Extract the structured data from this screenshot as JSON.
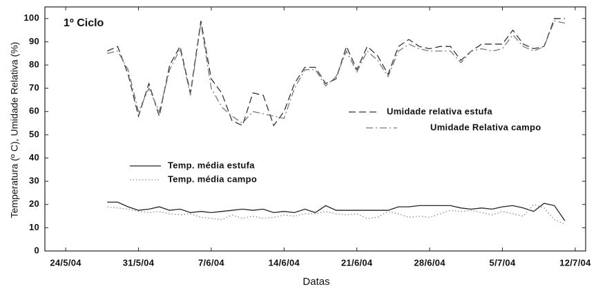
{
  "chart_data": {
    "type": "line",
    "annotation": "1º Ciclo",
    "xlabel": "Datas",
    "ylabel": "Temperatura (º C), Umidade Relativa (%)",
    "x": [
      "28/5/04",
      "29/5/04",
      "30/5/04",
      "31/5/04",
      "1/6/04",
      "2/6/04",
      "3/6/04",
      "4/6/04",
      "5/6/04",
      "6/6/04",
      "7/6/04",
      "8/6/04",
      "9/6/04",
      "10/6/04",
      "11/6/04",
      "12/6/04",
      "13/6/04",
      "14/6/04",
      "15/6/04",
      "16/6/04",
      "17/6/04",
      "18/6/04",
      "19/6/04",
      "20/6/04",
      "21/6/04",
      "22/6/04",
      "23/6/04",
      "24/6/04",
      "25/6/04",
      "26/6/04",
      "27/6/04",
      "28/6/04",
      "29/6/04",
      "30/6/04",
      "1/7/04",
      "2/7/04",
      "3/7/04",
      "4/7/04",
      "5/7/04",
      "6/7/04",
      "7/7/04",
      "8/7/04",
      "9/7/04",
      "10/7/04",
      "11/7/04"
    ],
    "xlim": [
      "22/5/04",
      "13/7/04"
    ],
    "xticks": [
      "24/5/04",
      "31/5/04",
      "7/6/04",
      "14/6/04",
      "21/6/04",
      "28/6/04",
      "5/7/04",
      "12/7/04"
    ],
    "ylim": [
      0,
      105
    ],
    "yticks": [
      0,
      10,
      20,
      30,
      40,
      50,
      60,
      70,
      80,
      90,
      100
    ],
    "series": [
      {
        "name": "Umidade relativa estufa",
        "color": "#333333",
        "dash": "dashed",
        "values": [
          86,
          88,
          76,
          58,
          72,
          58,
          80,
          88,
          68,
          99,
          74,
          68,
          56,
          54,
          68,
          67,
          54,
          60,
          72,
          79,
          79,
          72,
          74,
          88,
          78,
          88,
          84,
          76,
          88,
          91,
          88,
          87,
          88,
          88,
          82,
          86,
          89,
          89,
          89,
          95,
          89,
          87,
          88,
          100,
          100
        ]
      },
      {
        "name": "Umidade Relativa campo",
        "color": "#777777",
        "dash": "dashdot",
        "values": [
          85,
          86,
          78,
          60,
          70,
          60,
          78,
          87,
          67,
          98,
          70,
          62,
          58,
          55,
          60,
          59,
          58,
          57,
          70,
          78,
          78,
          71,
          75,
          86,
          77,
          86,
          82,
          75,
          86,
          89,
          87,
          86,
          86,
          86,
          81,
          86,
          87,
          86,
          87,
          93,
          88,
          86,
          88,
          99,
          98
        ]
      },
      {
        "name": "Temp. média estufa",
        "color": "#222222",
        "dash": "solid",
        "values": [
          21,
          21,
          19,
          17.5,
          18,
          19,
          17.5,
          18,
          16.5,
          17,
          16.5,
          17,
          17.5,
          18,
          17.5,
          18,
          16.5,
          17,
          16.5,
          18,
          16.5,
          19.5,
          17.5,
          17.5,
          17.5,
          17.5,
          17.5,
          17.5,
          19,
          19,
          19.5,
          19.5,
          19.5,
          19.5,
          18.5,
          18,
          18.5,
          18,
          19,
          19.5,
          18.5,
          17,
          20.5,
          19.5,
          13
        ]
      },
      {
        "name": "Temp. média campo",
        "color": "#888888",
        "dash": "dotted",
        "values": [
          19,
          18.5,
          18,
          17,
          16.5,
          17,
          16,
          15.5,
          16,
          14.5,
          14,
          13.5,
          15.5,
          14,
          15,
          14,
          14.5,
          15.5,
          15,
          16,
          16,
          17,
          16,
          15.5,
          16,
          14,
          14.5,
          17,
          16,
          14.5,
          15,
          14.5,
          16,
          17.5,
          17,
          17.5,
          16.5,
          15.5,
          17,
          16,
          15,
          20,
          18.5,
          13.5,
          11.5
        ]
      }
    ]
  }
}
